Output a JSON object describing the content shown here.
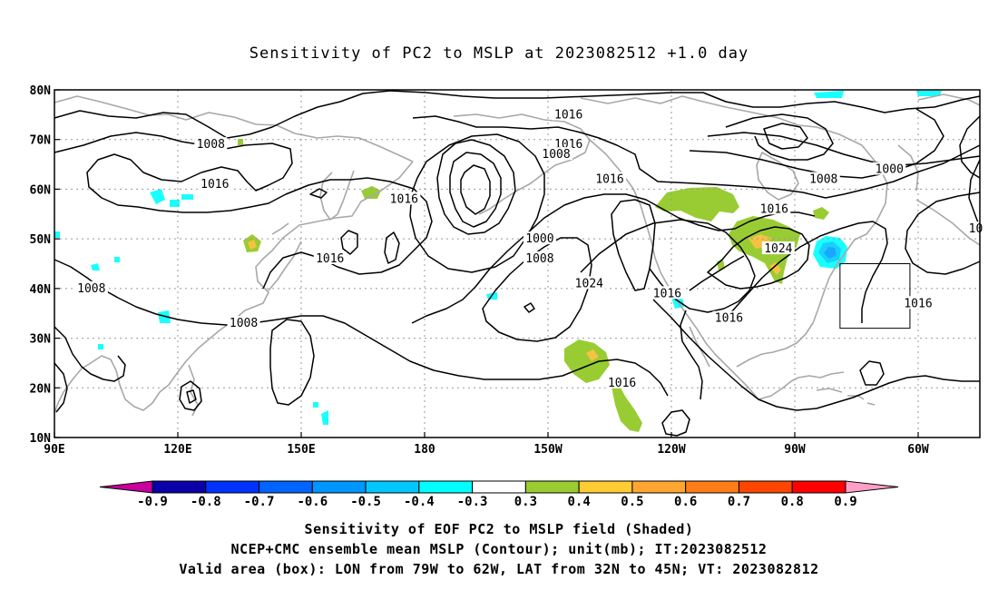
{
  "title": "Sensitivity of PC2 to MSLP at 2023082512 +1.0 day",
  "map": {
    "x_ticks": [
      "90E",
      "120E",
      "150E",
      "180",
      "150W",
      "120W",
      "90W",
      "60W"
    ],
    "y_ticks": [
      "80N",
      "70N",
      "60N",
      "50N",
      "40N",
      "30N",
      "20N",
      "10N"
    ],
    "lon_range": [
      "90E",
      "45W"
    ],
    "lat_range": [
      "10N",
      "80N"
    ],
    "grid": true,
    "valid_box": {
      "lon_from": "79W",
      "lon_to": "62W",
      "lat_from": "32N",
      "lat_to": "45N"
    },
    "contour_labels": [
      {
        "text": "1016",
        "lon": -145,
        "lat": 75
      },
      {
        "text": "1016",
        "lon": -145,
        "lat": 69
      },
      {
        "text": "1008",
        "lon": -148,
        "lat": 67
      },
      {
        "text": "1008",
        "lon": 128,
        "lat": 69
      },
      {
        "text": "1016",
        "lon": 129,
        "lat": 61
      },
      {
        "text": "1016",
        "lon": 175,
        "lat": 58
      },
      {
        "text": "1016",
        "lon": -135,
        "lat": 62
      },
      {
        "text": "1008",
        "lon": -83,
        "lat": 62
      },
      {
        "text": "1000",
        "lon": -67,
        "lat": 64
      },
      {
        "text": "1016",
        "lon": -95,
        "lat": 56
      },
      {
        "text": "1000",
        "lon": -152,
        "lat": 50
      },
      {
        "text": "1008",
        "lon": -152,
        "lat": 46
      },
      {
        "text": "1016",
        "lon": 157,
        "lat": 46
      },
      {
        "text": "1024",
        "lon": -94,
        "lat": 48
      },
      {
        "text": "1024",
        "lon": -140,
        "lat": 41
      },
      {
        "text": "1008",
        "lon": 99,
        "lat": 40
      },
      {
        "text": "1016",
        "lon": -121,
        "lat": 39
      },
      {
        "text": "1016",
        "lon": -106,
        "lat": 34
      },
      {
        "text": "1008",
        "lon": 136,
        "lat": 33
      },
      {
        "text": "1016",
        "lon": -132,
        "lat": 21
      },
      {
        "text": "1016",
        "lon": -60,
        "lat": 37
      },
      {
        "text": "10",
        "lon": -46,
        "lat": 52
      }
    ],
    "shading_colors": {
      "green_0.3": "#99cc33",
      "yellow_0.4": "#f5c242",
      "cyan_-0.3": "#19ffff",
      "sky_-0.4": "#17d0ff",
      "blue_-0.5": "#1ba6ff"
    }
  },
  "colorbar": {
    "labels": [
      "-0.9",
      "-0.8",
      "-0.7",
      "-0.6",
      "-0.5",
      "-0.4",
      "-0.3",
      "0.3",
      "0.4",
      "0.5",
      "0.6",
      "0.7",
      "0.8",
      "0.9"
    ],
    "colors": [
      "#0a00a8",
      "#0032ff",
      "#0064ff",
      "#0096ff",
      "#00c8ff",
      "#00ffff",
      "#ffffff",
      "#99cc33",
      "#ffcc33",
      "#ffa532",
      "#ff7d19",
      "#ff4600",
      "#ff0000"
    ],
    "low_extension_color": "#c8009c",
    "high_extension_color": "#ffa0c8"
  },
  "captions": {
    "line1": "Sensitivity of EOF PC2 to MSLP field (Shaded)",
    "line2": "NCEP+CMC ensemble mean MSLP (Contour); unit(mb); IT:2023082512",
    "line3": "Valid area (box): LON from 79W to 62W, LAT from 32N to 45N; VT: 2023082812"
  }
}
